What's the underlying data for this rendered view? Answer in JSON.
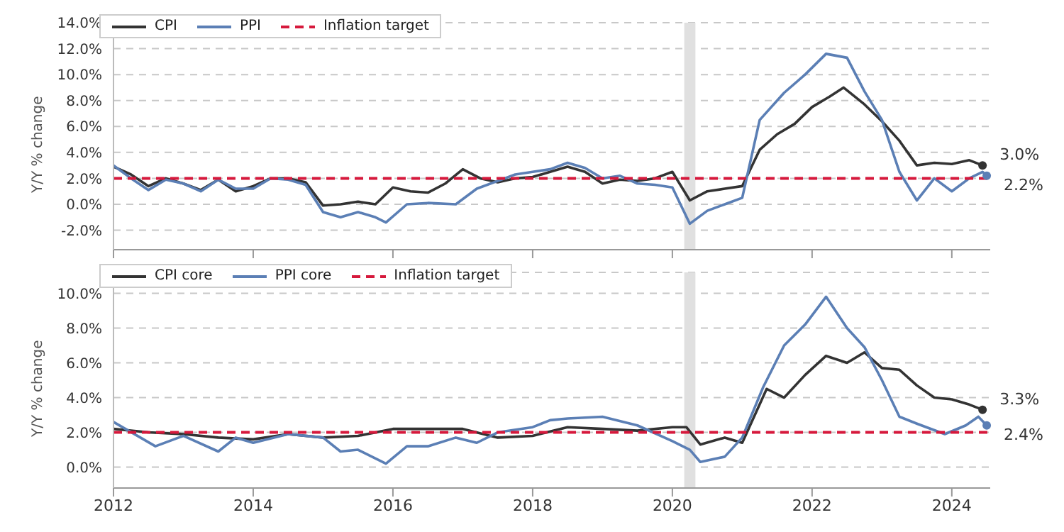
{
  "chart_data": [
    {
      "type": "line",
      "ylabel": "Y/Y % change",
      "xlim": [
        2012,
        2024.55
      ],
      "xticks": [
        {
          "value": 2012,
          "label": null
        },
        {
          "value": 2014,
          "label": null
        },
        {
          "value": 2016,
          "label": null
        },
        {
          "value": 2018,
          "label": null
        },
        {
          "value": 2020,
          "label": null
        },
        {
          "value": 2022,
          "label": null
        },
        {
          "value": 2024,
          "label": null
        }
      ],
      "tick_labels": "y",
      "ylim": [
        -3.5,
        14
      ],
      "yticks": [
        {
          "value": -2,
          "label": "-2.0%"
        },
        {
          "value": 0,
          "label": "0.0%"
        },
        {
          "value": 2,
          "label": "2.0%"
        },
        {
          "value": 4,
          "label": "4.0%"
        },
        {
          "value": 6,
          "label": "6.0%"
        },
        {
          "value": 8,
          "label": "8.0%"
        },
        {
          "value": 10,
          "label": "10.0%"
        },
        {
          "value": 12,
          "label": "12.0%"
        },
        {
          "value": 14,
          "label": "14.0%"
        }
      ],
      "grid": "y",
      "legend": "top left",
      "line_style": "solid",
      "series": [
        {
          "name": "CPI",
          "color": "#333333",
          "x": [
            2012,
            2012.25,
            2012.5,
            2012.75,
            2013,
            2013.25,
            2013.5,
            2013.75,
            2014,
            2014.25,
            2014.5,
            2014.75,
            2015,
            2015.25,
            2015.5,
            2015.75,
            2016,
            2016.25,
            2016.5,
            2016.75,
            2017,
            2017.25,
            2017.5,
            2017.75,
            2018,
            2018.25,
            2018.5,
            2018.75,
            2019,
            2019.25,
            2019.5,
            2019.75,
            2020,
            2020.25,
            2020.5,
            2020.75,
            2021,
            2021.25,
            2021.5,
            2021.75,
            2022,
            2022.25,
            2022.45,
            2022.75,
            2023,
            2023.25,
            2023.5,
            2023.75,
            2024,
            2024.25,
            2024.44
          ],
          "values": [
            2.9,
            2.3,
            1.4,
            2.0,
            1.6,
            1.1,
            1.9,
            1.0,
            1.4,
            2.0,
            2.0,
            1.7,
            -0.1,
            0.0,
            0.2,
            0.0,
            1.3,
            1.0,
            0.9,
            1.6,
            2.7,
            2.0,
            1.7,
            2.0,
            2.1,
            2.5,
            2.9,
            2.5,
            1.6,
            1.9,
            1.8,
            2.0,
            2.5,
            0.3,
            1.0,
            1.2,
            1.4,
            4.2,
            5.4,
            6.2,
            7.5,
            8.3,
            9.0,
            7.7,
            6.4,
            4.9,
            3.0,
            3.2,
            3.1,
            3.4,
            3.0
          ]
        },
        {
          "name": "PPI",
          "color": "#5b7fb5",
          "x": [
            2012,
            2012.25,
            2012.5,
            2012.75,
            2013,
            2013.25,
            2013.5,
            2013.75,
            2014,
            2014.25,
            2014.5,
            2014.75,
            2015,
            2015.25,
            2015.5,
            2015.75,
            2015.9,
            2016.2,
            2016.5,
            2016.9,
            2017.2,
            2017.5,
            2017.75,
            2018,
            2018.25,
            2018.5,
            2018.75,
            2019,
            2019.25,
            2019.5,
            2019.75,
            2020,
            2020.25,
            2020.5,
            2020.75,
            2021,
            2021.25,
            2021.6,
            2021.9,
            2022.2,
            2022.5,
            2022.75,
            2023,
            2023.25,
            2023.5,
            2023.75,
            2024,
            2024.25,
            2024.44,
            2024.5
          ],
          "values": [
            3.0,
            2.0,
            1.1,
            1.9,
            1.6,
            1.0,
            1.9,
            1.2,
            1.2,
            2.0,
            1.9,
            1.5,
            -0.6,
            -1.0,
            -0.6,
            -1.0,
            -1.4,
            0.0,
            0.1,
            0.0,
            1.2,
            1.8,
            2.3,
            2.5,
            2.7,
            3.2,
            2.8,
            2.0,
            2.2,
            1.6,
            1.5,
            1.3,
            -1.5,
            -0.5,
            0.0,
            0.5,
            6.5,
            8.6,
            10.0,
            11.6,
            11.3,
            8.7,
            6.5,
            2.5,
            0.3,
            2.0,
            1.0,
            2.0,
            2.5,
            2.2
          ]
        }
      ],
      "ref_lines": [
        {
          "axis": "y",
          "value": 2,
          "label": "Inflation target",
          "color": "#d6193c",
          "line_style": "dashed"
        }
      ],
      "bands": [
        {
          "axis": "x",
          "from": 2020.17,
          "to": 2020.33,
          "color": "#e0e0e0"
        }
      ],
      "annotations": [
        "3.0%",
        "2.2%"
      ]
    },
    {
      "type": "line",
      "ylabel": "Y/Y % change",
      "xlim": [
        2012,
        2024.55
      ],
      "xticks": [
        2012,
        2014,
        2016,
        2018,
        2020,
        2022,
        2024
      ],
      "ylim": [
        -1.2,
        11.2
      ],
      "yticks": [
        {
          "value": 0,
          "label": "0.0%"
        },
        {
          "value": 2,
          "label": "2.0%"
        },
        {
          "value": 4,
          "label": "4.0%"
        },
        {
          "value": 6,
          "label": "6.0%"
        },
        {
          "value": 8,
          "label": "8.0%"
        },
        {
          "value": 10,
          "label": "10.0%"
        }
      ],
      "grid": "y",
      "legend": "top left",
      "line_style": "solid",
      "series": [
        {
          "name": "CPI core",
          "color": "#333333",
          "x": [
            2012,
            2012.5,
            2013,
            2013.5,
            2014,
            2014.5,
            2015,
            2015.5,
            2016,
            2016.5,
            2017,
            2017.5,
            2018,
            2018.5,
            2019,
            2019.5,
            2020,
            2020.2,
            2020.4,
            2020.75,
            2021,
            2021.35,
            2021.6,
            2021.9,
            2022.2,
            2022.5,
            2022.75,
            2023,
            2023.25,
            2023.5,
            2023.75,
            2024,
            2024.25,
            2024.44
          ],
          "values": [
            2.2,
            2.0,
            1.9,
            1.7,
            1.6,
            1.9,
            1.7,
            1.8,
            2.2,
            2.2,
            2.2,
            1.7,
            1.8,
            2.3,
            2.2,
            2.1,
            2.3,
            2.3,
            1.3,
            1.7,
            1.4,
            4.5,
            4.0,
            5.3,
            6.4,
            6.0,
            6.6,
            5.7,
            5.6,
            4.7,
            4.0,
            3.9,
            3.6,
            3.3
          ]
        },
        {
          "name": "PPI core",
          "color": "#5b7fb5",
          "x": [
            2012,
            2012.6,
            2013,
            2013.5,
            2013.75,
            2014,
            2014.5,
            2015,
            2015.25,
            2015.5,
            2015.9,
            2016.2,
            2016.5,
            2016.9,
            2017.2,
            2017.5,
            2018,
            2018.25,
            2018.5,
            2019,
            2019.5,
            2020,
            2020.25,
            2020.4,
            2020.75,
            2021,
            2021.3,
            2021.6,
            2021.9,
            2022.2,
            2022.5,
            2022.75,
            2023,
            2023.25,
            2023.5,
            2023.9,
            2024.2,
            2024.38,
            2024.5
          ],
          "values": [
            2.6,
            1.2,
            1.8,
            0.9,
            1.7,
            1.4,
            1.9,
            1.7,
            0.9,
            1.0,
            0.2,
            1.2,
            1.2,
            1.7,
            1.4,
            2.0,
            2.3,
            2.7,
            2.8,
            2.9,
            2.4,
            1.5,
            1.0,
            0.3,
            0.6,
            1.7,
            4.6,
            7.0,
            8.2,
            9.8,
            8.0,
            6.9,
            5.0,
            2.9,
            2.5,
            1.9,
            2.4,
            2.9,
            2.4
          ]
        }
      ],
      "ref_lines": [
        {
          "axis": "y",
          "value": 2,
          "label": "Inflation target",
          "color": "#d6193c",
          "line_style": "dashed"
        }
      ],
      "bands": [
        {
          "axis": "x",
          "from": 2020.17,
          "to": 2020.33,
          "color": "#e0e0e0"
        }
      ],
      "annotations": [
        "3.3%",
        "2.4%"
      ]
    }
  ]
}
